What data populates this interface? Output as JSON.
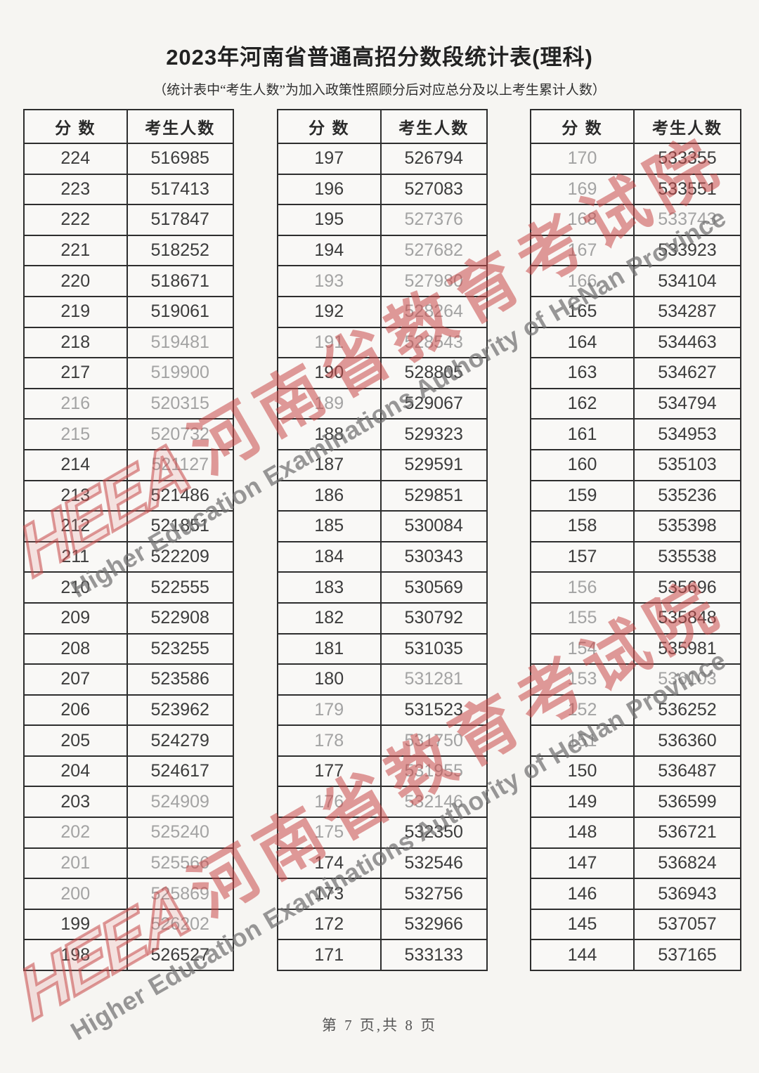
{
  "page": {
    "title": "2023年河南省普通高招分数段统计表(理科)",
    "subtitle": "（统计表中“考生人数”为加入政策性照顾分后对应总分及以上考生累计人数）",
    "footer": "第 7 页,共 8 页"
  },
  "watermark": {
    "logo": "HEEA",
    "cn": "河南省教育考试院",
    "en": "Higher Education Examinations Authority of HeNan Province",
    "red": "#c94949",
    "gray": "#8f8f8f"
  },
  "table_headers": {
    "score": "分  数",
    "count": "考生人数"
  },
  "tables": [
    {
      "rows": [
        {
          "s": "224",
          "c": "516985",
          "d": ""
        },
        {
          "s": "223",
          "c": "517413",
          "d": ""
        },
        {
          "s": "222",
          "c": "517847",
          "d": ""
        },
        {
          "s": "221",
          "c": "518252",
          "d": ""
        },
        {
          "s": "220",
          "c": "518671",
          "d": ""
        },
        {
          "s": "219",
          "c": "519061",
          "d": ""
        },
        {
          "s": "218",
          "c": "519481",
          "d": "c"
        },
        {
          "s": "217",
          "c": "519900",
          "d": "c"
        },
        {
          "s": "216",
          "c": "520315",
          "d": "sc"
        },
        {
          "s": "215",
          "c": "520732",
          "d": "sc"
        },
        {
          "s": "214",
          "c": "521127",
          "d": "c"
        },
        {
          "s": "213",
          "c": "521486",
          "d": ""
        },
        {
          "s": "212",
          "c": "521851",
          "d": ""
        },
        {
          "s": "211",
          "c": "522209",
          "d": ""
        },
        {
          "s": "210",
          "c": "522555",
          "d": ""
        },
        {
          "s": "209",
          "c": "522908",
          "d": ""
        },
        {
          "s": "208",
          "c": "523255",
          "d": ""
        },
        {
          "s": "207",
          "c": "523586",
          "d": ""
        },
        {
          "s": "206",
          "c": "523962",
          "d": ""
        },
        {
          "s": "205",
          "c": "524279",
          "d": ""
        },
        {
          "s": "204",
          "c": "524617",
          "d": ""
        },
        {
          "s": "203",
          "c": "524909",
          "d": "c"
        },
        {
          "s": "202",
          "c": "525240",
          "d": "sc"
        },
        {
          "s": "201",
          "c": "525566",
          "d": "sc"
        },
        {
          "s": "200",
          "c": "525869",
          "d": "sc"
        },
        {
          "s": "199",
          "c": "526202",
          "d": "c"
        },
        {
          "s": "198",
          "c": "526527",
          "d": ""
        }
      ]
    },
    {
      "rows": [
        {
          "s": "197",
          "c": "526794",
          "d": ""
        },
        {
          "s": "196",
          "c": "527083",
          "d": ""
        },
        {
          "s": "195",
          "c": "527376",
          "d": "c"
        },
        {
          "s": "194",
          "c": "527682",
          "d": "c"
        },
        {
          "s": "193",
          "c": "527980",
          "d": "sc"
        },
        {
          "s": "192",
          "c": "528264",
          "d": "c"
        },
        {
          "s": "191",
          "c": "528543",
          "d": "sc"
        },
        {
          "s": "190",
          "c": "528805",
          "d": ""
        },
        {
          "s": "189",
          "c": "529067",
          "d": "s"
        },
        {
          "s": "188",
          "c": "529323",
          "d": ""
        },
        {
          "s": "187",
          "c": "529591",
          "d": ""
        },
        {
          "s": "186",
          "c": "529851",
          "d": ""
        },
        {
          "s": "185",
          "c": "530084",
          "d": ""
        },
        {
          "s": "184",
          "c": "530343",
          "d": ""
        },
        {
          "s": "183",
          "c": "530569",
          "d": ""
        },
        {
          "s": "182",
          "c": "530792",
          "d": ""
        },
        {
          "s": "181",
          "c": "531035",
          "d": ""
        },
        {
          "s": "180",
          "c": "531281",
          "d": "c"
        },
        {
          "s": "179",
          "c": "531523",
          "d": "s"
        },
        {
          "s": "178",
          "c": "531750",
          "d": "sc"
        },
        {
          "s": "177",
          "c": "531955",
          "d": "c"
        },
        {
          "s": "176",
          "c": "532146",
          "d": "sc"
        },
        {
          "s": "175",
          "c": "532350",
          "d": "s"
        },
        {
          "s": "174",
          "c": "532546",
          "d": ""
        },
        {
          "s": "173",
          "c": "532756",
          "d": ""
        },
        {
          "s": "172",
          "c": "532966",
          "d": ""
        },
        {
          "s": "171",
          "c": "533133",
          "d": ""
        }
      ]
    },
    {
      "rows": [
        {
          "s": "170",
          "c": "533355",
          "d": "s"
        },
        {
          "s": "169",
          "c": "533551",
          "d": "s"
        },
        {
          "s": "168",
          "c": "533743",
          "d": "sc"
        },
        {
          "s": "167",
          "c": "533923",
          "d": "s"
        },
        {
          "s": "166",
          "c": "534104",
          "d": "s"
        },
        {
          "s": "165",
          "c": "534287",
          "d": ""
        },
        {
          "s": "164",
          "c": "534463",
          "d": ""
        },
        {
          "s": "163",
          "c": "534627",
          "d": ""
        },
        {
          "s": "162",
          "c": "534794",
          "d": ""
        },
        {
          "s": "161",
          "c": "534953",
          "d": ""
        },
        {
          "s": "160",
          "c": "535103",
          "d": ""
        },
        {
          "s": "159",
          "c": "535236",
          "d": ""
        },
        {
          "s": "158",
          "c": "535398",
          "d": ""
        },
        {
          "s": "157",
          "c": "535538",
          "d": ""
        },
        {
          "s": "156",
          "c": "535696",
          "d": "s"
        },
        {
          "s": "155",
          "c": "535848",
          "d": "s"
        },
        {
          "s": "154",
          "c": "535981",
          "d": "s"
        },
        {
          "s": "153",
          "c": "536103",
          "d": "sc"
        },
        {
          "s": "152",
          "c": "536252",
          "d": "s"
        },
        {
          "s": "151",
          "c": "536360",
          "d": "s"
        },
        {
          "s": "150",
          "c": "536487",
          "d": ""
        },
        {
          "s": "149",
          "c": "536599",
          "d": ""
        },
        {
          "s": "148",
          "c": "536721",
          "d": ""
        },
        {
          "s": "147",
          "c": "536824",
          "d": ""
        },
        {
          "s": "146",
          "c": "536943",
          "d": ""
        },
        {
          "s": "145",
          "c": "537057",
          "d": ""
        },
        {
          "s": "144",
          "c": "537165",
          "d": ""
        }
      ]
    }
  ]
}
